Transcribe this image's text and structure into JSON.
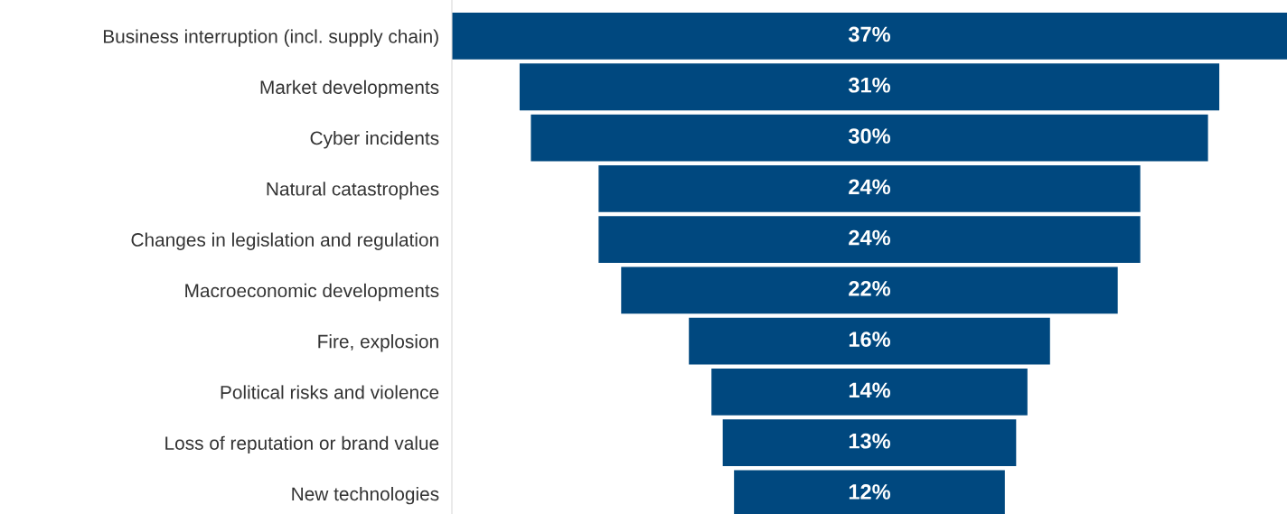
{
  "chart_data": {
    "type": "other",
    "categories": [
      "Business interruption (incl. supply chain)",
      "Market developments",
      "Cyber incidents",
      "Natural catastrophes",
      "Changes in legislation and regulation",
      "Macroeconomic developments",
      "Fire, explosion",
      "Political risks and violence",
      "Loss of reputation or brand value",
      "New technologies"
    ],
    "values": [
      37,
      31,
      30,
      24,
      24,
      22,
      16,
      14,
      13,
      12
    ],
    "value_labels": [
      "37%",
      "31%",
      "30%",
      "24%",
      "24%",
      "22%",
      "16%",
      "14%",
      "13%",
      "12%"
    ],
    "color": "#00487f"
  }
}
